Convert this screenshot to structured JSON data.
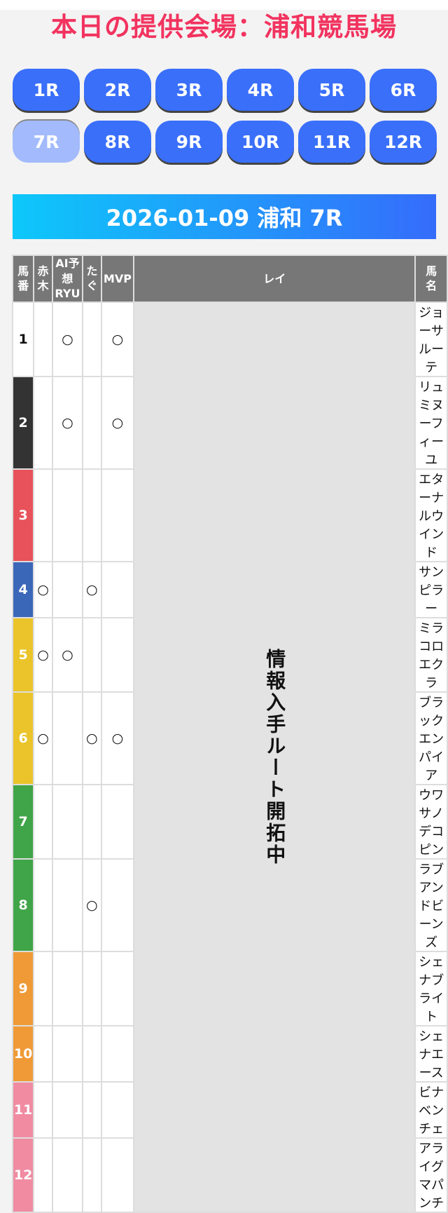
{
  "title": "本日の提供会場：浦和競馬場",
  "races": [
    "1R",
    "2R",
    "3R",
    "4R",
    "5R",
    "6R",
    "7R",
    "8R",
    "9R",
    "10R",
    "11R",
    "12R"
  ],
  "selected_race": "7R",
  "banner": "2026-01-09 浦和 7R",
  "table": {
    "headers": {
      "num_line1": "馬",
      "num_line2": "番",
      "akagi": "赤木",
      "ai_line1": "AI予想",
      "ai_line2": "RYU",
      "tagu": "たぐ",
      "mvp": "MVP",
      "rei": "レイ",
      "name_line1": "馬",
      "name_line2": "名"
    },
    "rei_note": "情報入手ルート開拓中",
    "mark": "○",
    "rows": [
      {
        "num": "1",
        "bg": "#ffffff",
        "fg": "#111111",
        "name": "ジョーサルーテ",
        "akagi": false,
        "ai": true,
        "tagu": false,
        "mvp": true
      },
      {
        "num": "2",
        "bg": "#333333",
        "fg": "#ffffff",
        "name": "リュミヌーフィーユ",
        "akagi": false,
        "ai": true,
        "tagu": false,
        "mvp": true
      },
      {
        "num": "3",
        "bg": "#e8525a",
        "fg": "#ffffff",
        "name": "エターナルウインド",
        "akagi": false,
        "ai": false,
        "tagu": false,
        "mvp": false
      },
      {
        "num": "4",
        "bg": "#3b67b9",
        "fg": "#ffffff",
        "name": "サンピラー",
        "akagi": true,
        "ai": false,
        "tagu": true,
        "mvp": false
      },
      {
        "num": "5",
        "bg": "#eac42a",
        "fg": "#ffffff",
        "name": "ミラコロエクラ",
        "akagi": true,
        "ai": true,
        "tagu": false,
        "mvp": false
      },
      {
        "num": "6",
        "bg": "#eac42a",
        "fg": "#ffffff",
        "name": "ブラックエンパイア",
        "akagi": true,
        "ai": false,
        "tagu": true,
        "mvp": true
      },
      {
        "num": "7",
        "bg": "#3fa548",
        "fg": "#ffffff",
        "name": "ウワサノデコピン",
        "akagi": false,
        "ai": false,
        "tagu": false,
        "mvp": false
      },
      {
        "num": "8",
        "bg": "#3fa548",
        "fg": "#ffffff",
        "name": "ラブアンドビーンズ",
        "akagi": false,
        "ai": false,
        "tagu": true,
        "mvp": false
      },
      {
        "num": "9",
        "bg": "#ef9a36",
        "fg": "#ffffff",
        "name": "シェナブライト",
        "akagi": false,
        "ai": false,
        "tagu": false,
        "mvp": false
      },
      {
        "num": "10",
        "bg": "#ef9a36",
        "fg": "#ffffff",
        "name": "シェナエース",
        "akagi": false,
        "ai": false,
        "tagu": false,
        "mvp": false
      },
      {
        "num": "11",
        "bg": "#f08ba2",
        "fg": "#ffffff",
        "name": "ビナベンチェ",
        "akagi": false,
        "ai": false,
        "tagu": false,
        "mvp": false
      },
      {
        "num": "12",
        "bg": "#f08ba2",
        "fg": "#ffffff",
        "name": "アライグマパンチ",
        "akagi": false,
        "ai": false,
        "tagu": false,
        "mvp": false
      }
    ]
  },
  "colors": {
    "title": "#f2335f",
    "race_button": "#3a6ffa",
    "race_button_active": "#a3bbfd",
    "header_bg": "#777777"
  }
}
